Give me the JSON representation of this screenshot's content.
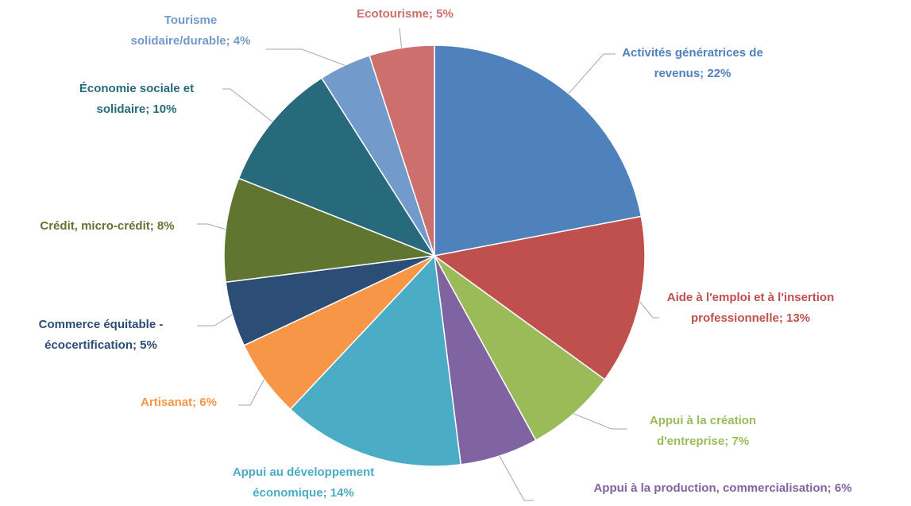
{
  "chart_data": {
    "type": "pie",
    "categories": [
      "Activités génératrices de revenus;",
      "Aide à l'emploi et à l'insertion professionnelle;",
      "Appui à la création d'entreprise;",
      "Appui à la production, commercialisation;",
      "Appui au développement économique;",
      "Artisanat;",
      "Commerce équitable - écocertification;",
      "Crédit, micro-crédit;",
      "Économie sociale et solidaire;",
      "Tourisme solidaire/durable;",
      "Ecotourisme;"
    ],
    "values": [
      22,
      13,
      7,
      6,
      14,
      6,
      5,
      8,
      10,
      4,
      5
    ],
    "value_labels": [
      "22%",
      "13%",
      "7%",
      "6%",
      "14%",
      "6%",
      "5%",
      "8%",
      "10%",
      "4%",
      "5%"
    ],
    "colors": [
      "#4f81bd",
      "#c0504d",
      "#9bbb59",
      "#8064a2",
      "#4bacc6",
      "#f79646",
      "#2c4d75",
      "#5f7530",
      "#276a7c",
      "#729aca",
      "#cd6f6c"
    ]
  }
}
